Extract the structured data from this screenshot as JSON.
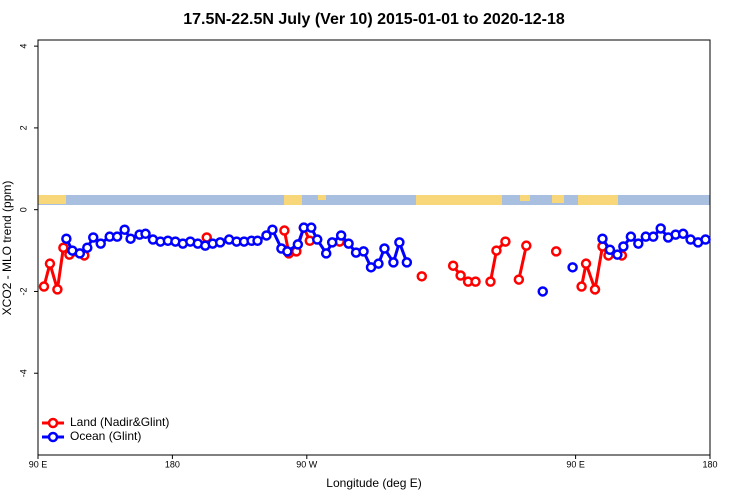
{
  "chart_data": {
    "type": "line",
    "title": "17.5N-22.5N July (Ver 10)   2015-01-01 to 2020-12-18",
    "xlabel": "Longitude (deg E)",
    "ylabel": "XCO2 - MLO trend (ppm)",
    "xlim": [
      90,
      540
    ],
    "ylim": [
      -6,
      4.15
    ],
    "xticks": [
      {
        "value": 90,
        "label": "90 E"
      },
      180,
      {
        "value": 270,
        "label": "90 W"
      },
      {
        "value": 450,
        "label": "90 E"
      },
      {
        "value": 540,
        "label": "180"
      }
    ],
    "yticks": [
      4,
      2,
      0,
      -2,
      -4
    ],
    "legend": "bottom-left",
    "series": [
      {
        "name": "Land (Nadir&Glint)",
        "color": "#ff0000",
        "x": [
          94,
          98,
          103,
          107,
          111,
          121,
          null,
          203,
          null,
          255,
          258,
          263,
          268,
          272,
          null,
          292,
          null,
          347,
          null,
          368,
          373,
          378,
          383,
          null,
          393,
          397,
          403,
          null,
          412,
          417,
          null,
          437,
          null,
          454,
          457,
          463,
          468,
          472,
          481
        ],
        "values": [
          -1.88,
          -1.32,
          -1.95,
          -0.93,
          -1.1,
          -1.12,
          null,
          -0.68,
          null,
          -0.51,
          -1.07,
          -1.02,
          -0.44,
          -0.76,
          null,
          -0.78,
          null,
          -1.63,
          null,
          -1.37,
          -1.61,
          -1.76,
          -1.76,
          null,
          -1.76,
          -1.0,
          -0.78,
          null,
          -1.71,
          -0.88,
          null,
          -1.02,
          null,
          -1.88,
          -1.32,
          -1.95,
          -0.9,
          -1.12,
          -1.12
        ]
      },
      {
        "name": "Ocean (Glint)",
        "color": "#0000ff",
        "x": [
          109,
          113,
          118,
          123,
          127,
          132,
          138,
          143,
          148,
          152,
          158,
          162,
          167,
          172,
          177,
          182,
          187,
          192,
          197,
          202,
          207,
          212,
          218,
          223,
          228,
          233,
          237,
          243,
          247,
          253,
          257,
          264,
          268,
          273,
          277,
          283,
          287,
          293,
          298,
          303,
          308,
          313,
          318,
          322,
          328,
          332,
          337,
          null,
          428,
          null,
          448,
          null,
          468,
          473,
          478,
          482,
          487,
          492,
          497,
          502,
          507,
          512,
          517,
          522,
          527,
          532,
          537
        ],
        "values": [
          -0.71,
          -1.0,
          -1.07,
          -0.93,
          -0.68,
          -0.83,
          -0.66,
          -0.66,
          -0.49,
          -0.71,
          -0.61,
          -0.59,
          -0.73,
          -0.78,
          -0.76,
          -0.78,
          -0.83,
          -0.78,
          -0.83,
          -0.88,
          -0.83,
          -0.8,
          -0.73,
          -0.78,
          -0.78,
          -0.76,
          -0.76,
          -0.63,
          -0.49,
          -0.95,
          -1.02,
          -0.85,
          -0.44,
          -0.44,
          -0.73,
          -1.07,
          -0.8,
          -0.63,
          -0.83,
          -1.05,
          -1.02,
          -1.41,
          -1.32,
          -0.95,
          -1.29,
          -0.8,
          -1.29,
          null,
          -2.0,
          null,
          -1.41,
          null,
          -0.71,
          -0.98,
          -1.1,
          -0.9,
          -0.66,
          -0.83,
          -0.66,
          -0.66,
          -0.46,
          -0.68,
          -0.61,
          -0.59,
          -0.73,
          -0.8,
          -0.73
        ]
      }
    ]
  }
}
